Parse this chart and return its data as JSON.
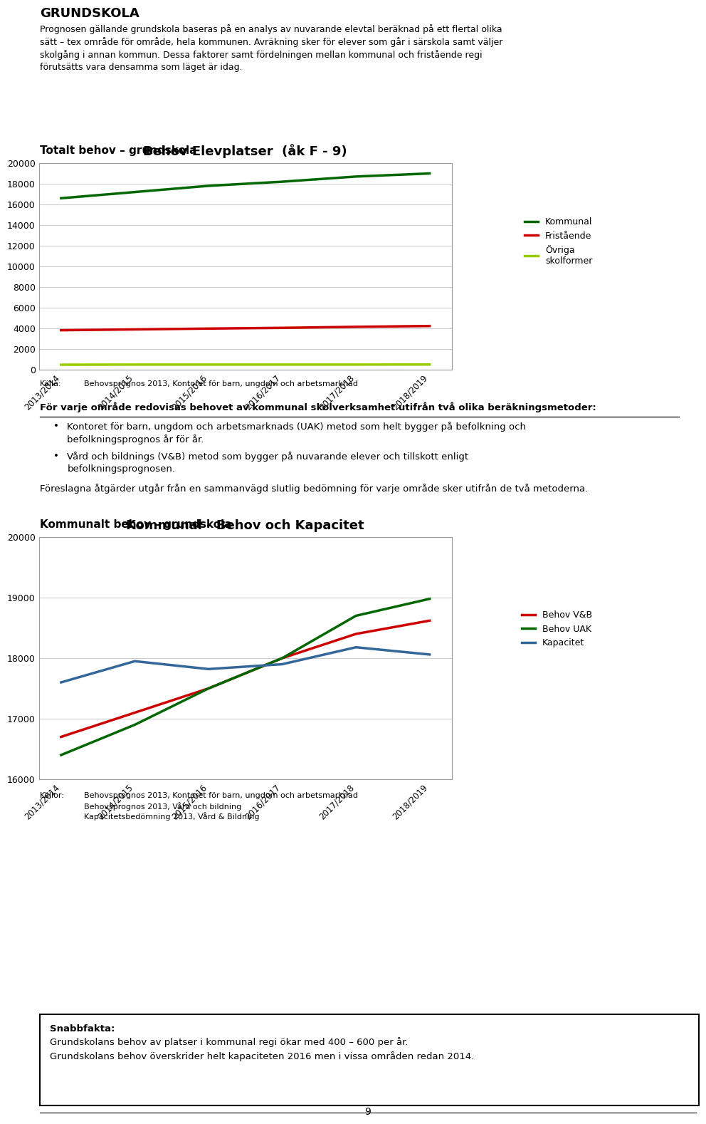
{
  "page_title": "GRUNDSKOLA",
  "intro_text_lines": [
    "Prognosen gällande grundskola baseras på en analys av nuvarande elevtal beräknad på ett flertal olika",
    "sätt – tex område för område, hela kommunen. Avräkning sker för elever som går i särskola samt väljer",
    "skolgång i annan kommun. Dessa faktorer samt fördelningen mellan kommunal och fristående regi",
    "förutsätts vara densamma som läget är idag."
  ],
  "chart1_section_title": "Totalt behov – grundskola",
  "chart1_title": "Behov Elevplatser  (åk F - 9)",
  "chart1_xlabel_categories": [
    "2013/2014",
    "2014/2015",
    "2015/2016",
    "2016/2017",
    "2017/2018",
    "2018/2019"
  ],
  "chart1_ylim": [
    0,
    20000
  ],
  "chart1_yticks": [
    0,
    2000,
    4000,
    6000,
    8000,
    10000,
    12000,
    14000,
    16000,
    18000,
    20000
  ],
  "chart1_kommunal": [
    16600,
    17200,
    17800,
    18200,
    18700,
    19000
  ],
  "chart1_fristaende": [
    3820,
    3900,
    3980,
    4050,
    4150,
    4230
  ],
  "chart1_ovriga": [
    480,
    490,
    490,
    490,
    490,
    500
  ],
  "chart1_kommunal_color": "#006600",
  "chart1_fristaende_color": "#CC0000",
  "chart1_ovriga_color": "#99CC00",
  "chart1_legend": [
    "Kommunal",
    "Fristående",
    "Övriga\nskolformer"
  ],
  "chart1_source_label": "Källa:",
  "chart1_source_text": "Behovsprognos 2013, Kontoret för barn, ungdom och arbetsmarknad",
  "mid_text_underline": "För varje område redovisas behovet av kommunal skolverksamhet utifrån två olika beräkningsmetoder:",
  "mid_bullet1_lines": [
    "Kontoret för barn, ungdom och arbetsmarknads (UAK) metod som helt bygger på befolkning och",
    "befolkningsprognos år för år."
  ],
  "mid_bullet2_lines": [
    "Vård och bildnings (V&B) metod som bygger på nuvarande elever och tillskott enligt",
    "befolkningsprognosen."
  ],
  "mid_text2": "Föreslagna åtgärder utgår från en sammanvägd slutlig bedömning för varje område sker utifrån de två metoderna.",
  "chart2_section_title": "Kommunalt behov – grundskola",
  "chart2_title": "Kommunal - Behov och Kapacitet",
  "chart2_xlabel_categories": [
    "2013/2014",
    "2014/2015",
    "2015/2016",
    "2016/2017",
    "2017/2018",
    "2018/2019"
  ],
  "chart2_ylim": [
    16000,
    20000
  ],
  "chart2_yticks": [
    16000,
    17000,
    18000,
    19000,
    20000
  ],
  "chart2_behov_vb": [
    16700,
    17100,
    17500,
    18000,
    18400,
    18620
  ],
  "chart2_behov_uak": [
    16400,
    16900,
    17500,
    18000,
    18700,
    18980
  ],
  "chart2_kapacitet": [
    17600,
    17950,
    17820,
    17900,
    18180,
    18060
  ],
  "chart2_vb_color": "#CC0000",
  "chart2_uak_color": "#006600",
  "chart2_kapacitet_color": "#336699",
  "chart2_legend": [
    "Behov V&B",
    "Behov UAK",
    "Kapacitet"
  ],
  "chart2_source_label": "Källor:",
  "chart2_source_lines": [
    "Behovsprognos 2013, Kontoret för barn, ungdom och arbetsmarknad",
    "Behovsprognos 2013, Vård och bildning",
    "Kapacitetsbedömning 2013, Vård & Bildning"
  ],
  "snabbfakta_title": "Snabbfakta:",
  "snabbfakta_text1": "Grundskolans behov av platser i kommunal regi ökar med 400 – 600 per år.",
  "snabbfakta_text2": "Grundskolans behov överskrider helt kapaciteten 2016 men i vissa områden redan 2014.",
  "footer_page": "9",
  "chart_bg_color": "#FFFFFF",
  "chart_border_color": "#999999",
  "grid_color": "#CCCCCC",
  "line_width": 2.5
}
